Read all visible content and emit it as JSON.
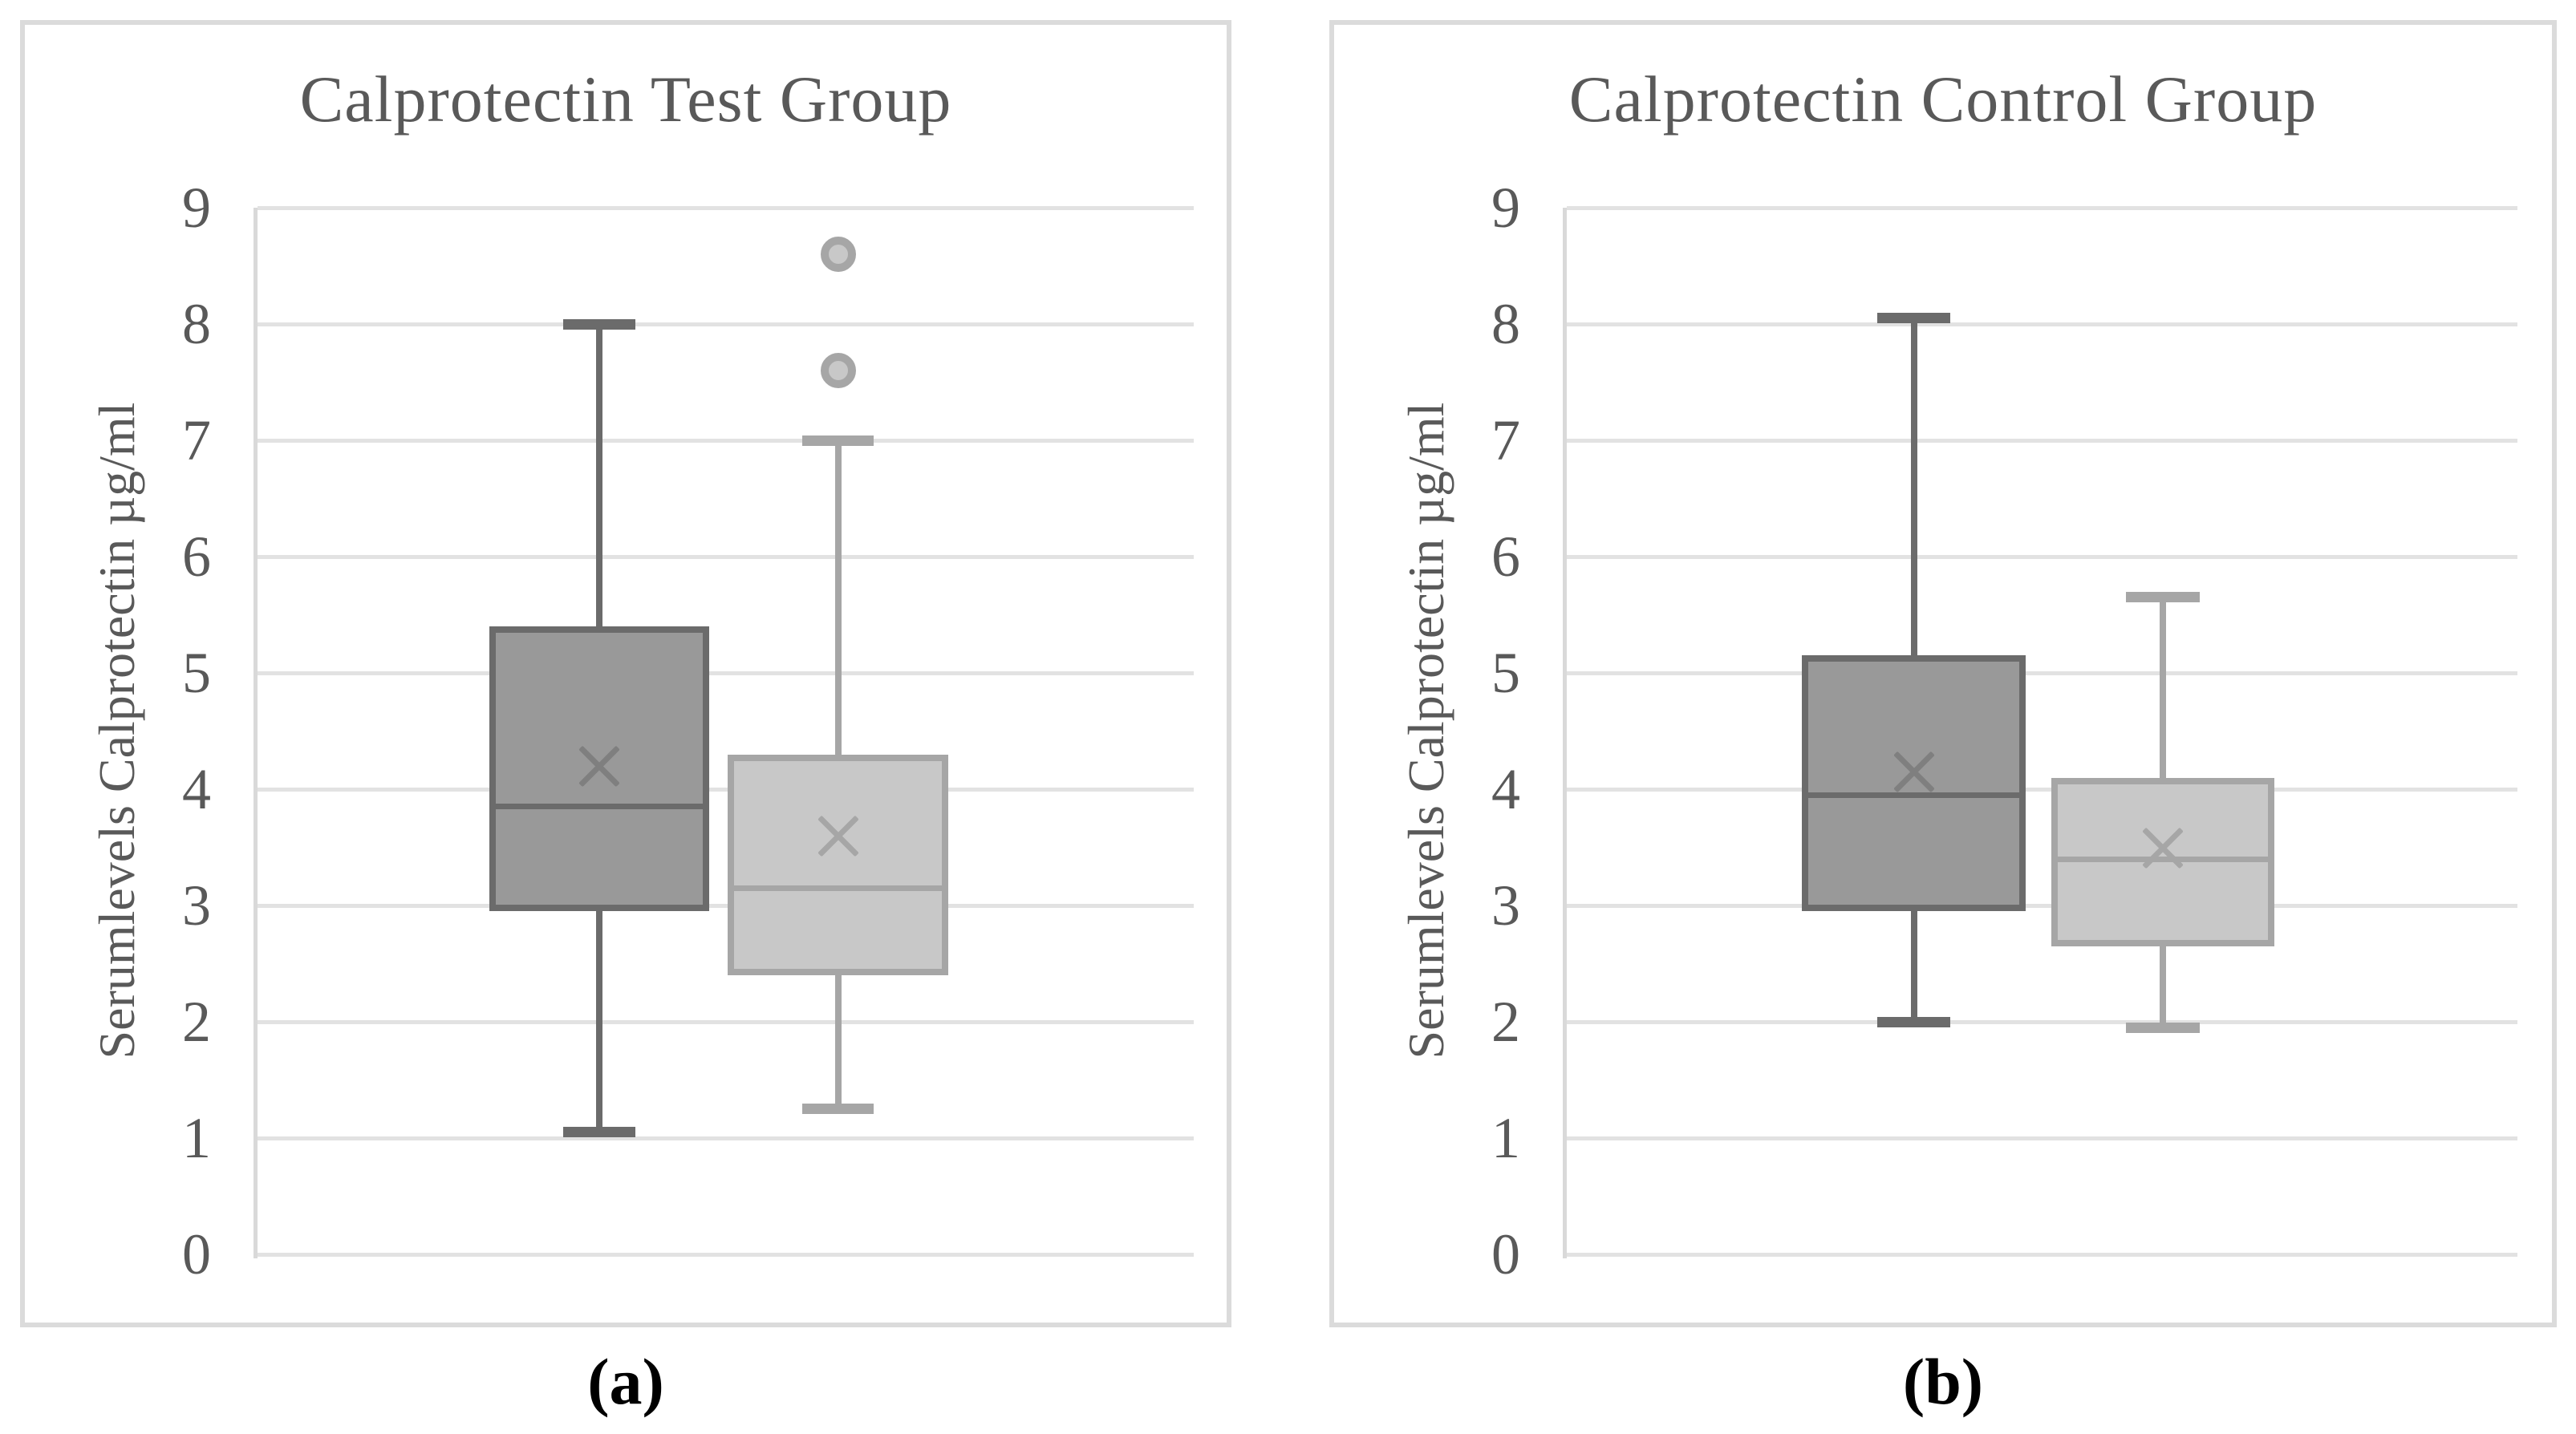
{
  "figure": {
    "background": "#ffffff",
    "panel_border_color": "#dbdbdb",
    "grid_color": "#e2e2e2",
    "axis_line_color": "#d9d9d9",
    "text_color": "#595959",
    "caption_color": "#000000"
  },
  "chart_data": [
    {
      "type": "boxplot",
      "title": "Calprotectin Test Group",
      "caption": "(a)",
      "ylabel": "Serumlevels Calprotectin µg/ml",
      "ylim": [
        0,
        9
      ],
      "yticks": [
        0,
        1,
        2,
        3,
        4,
        5,
        6,
        7,
        8,
        9
      ],
      "grid": "horizontal",
      "legend": "none",
      "series": [
        {
          "id": "series-1",
          "min": 1.05,
          "q1": 2.95,
          "median": 3.85,
          "mean": 4.2,
          "q3": 5.4,
          "max": 8.0,
          "outliers": [],
          "x_frac": 0.365,
          "box_width_frac": 0.235,
          "cap_width_frac": 0.077,
          "fill": "#999999",
          "stroke": "#6b6b6b",
          "mean_color": "#7f7f7f"
        },
        {
          "id": "series-2",
          "min": 1.25,
          "q1": 2.4,
          "median": 3.15,
          "mean": 3.6,
          "q3": 4.3,
          "max": 7.0,
          "outliers": [
            7.6,
            8.6
          ],
          "x_frac": 0.62,
          "box_width_frac": 0.235,
          "cap_width_frac": 0.077,
          "fill": "#c8c8c8",
          "stroke": "#a6a6a6",
          "mean_color": "#a6a6a6"
        }
      ]
    },
    {
      "type": "boxplot",
      "title": "Calprotectin Control Group",
      "caption": "(b)",
      "ylabel": "Serumlevels Calprotectin µg/ml",
      "ylim": [
        0,
        9
      ],
      "yticks": [
        0,
        1,
        2,
        3,
        4,
        5,
        6,
        7,
        8,
        9
      ],
      "grid": "horizontal",
      "legend": "none",
      "series": [
        {
          "id": "series-1",
          "min": 2.0,
          "q1": 2.95,
          "median": 3.95,
          "mean": 4.15,
          "q3": 5.15,
          "max": 8.05,
          "outliers": [],
          "x_frac": 0.365,
          "box_width_frac": 0.235,
          "cap_width_frac": 0.077,
          "fill": "#999999",
          "stroke": "#6b6b6b",
          "mean_color": "#7f7f7f"
        },
        {
          "id": "series-2",
          "min": 1.95,
          "q1": 2.65,
          "median": 3.4,
          "mean": 3.5,
          "q3": 4.1,
          "max": 5.65,
          "outliers": [],
          "x_frac": 0.627,
          "box_width_frac": 0.235,
          "cap_width_frac": 0.077,
          "fill": "#c8c8c8",
          "stroke": "#a6a6a6",
          "mean_color": "#a6a6a6"
        }
      ]
    }
  ]
}
